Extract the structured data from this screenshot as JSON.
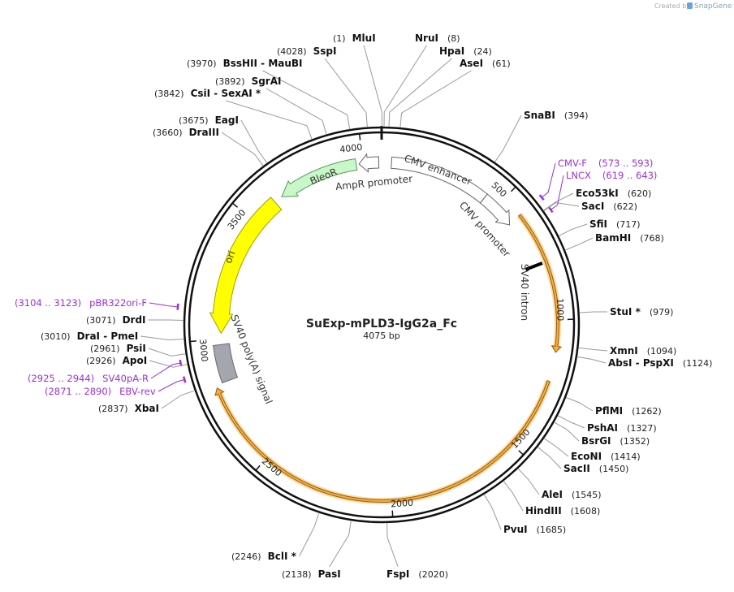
{
  "header": {
    "created_by": "Created by",
    "brand": "SnapGene"
  },
  "plasmid": {
    "name": "SuExp-mPLD3-IgG2a_Fc",
    "size": "4075 bp"
  },
  "ticks": [
    500,
    1000,
    1500,
    2000,
    2500,
    3000,
    3500,
    4000
  ],
  "features": [
    "CMV enhancer",
    "CMV promoter",
    "SV40 intron",
    "AmpR promoter",
    "BleoR",
    "ori",
    "SV40 poly(A) signal"
  ],
  "enzymes": [
    {
      "name": "MluI",
      "position": "(1)"
    },
    {
      "name": "NruI",
      "position": "(8)"
    },
    {
      "name": "HpaI",
      "position": "(24)"
    },
    {
      "name": "AseI",
      "position": "(61)"
    },
    {
      "name": "SnaBI",
      "position": "(394)"
    },
    {
      "name": "Eco53kI",
      "position": "(620)"
    },
    {
      "name": "SacI",
      "position": "(622)"
    },
    {
      "name": "SfiI",
      "position": "(717)"
    },
    {
      "name": "BamHI",
      "position": "(768)"
    },
    {
      "name": "StuI *",
      "position": "(979)"
    },
    {
      "name": "XmnI",
      "position": "(1094)"
    },
    {
      "name": "AbsI - PspXI",
      "position": "(1124)"
    },
    {
      "name": "PflMI",
      "position": "(1262)"
    },
    {
      "name": "PshAI",
      "position": "(1327)"
    },
    {
      "name": "BsrGI",
      "position": "(1352)"
    },
    {
      "name": "EcoNI",
      "position": "(1414)"
    },
    {
      "name": "SacII",
      "position": "(1450)"
    },
    {
      "name": "AleI",
      "position": "(1545)"
    },
    {
      "name": "HindIII",
      "position": "(1608)"
    },
    {
      "name": "PvuI",
      "position": "(1685)"
    },
    {
      "name": "FspI",
      "position": "(2020)"
    },
    {
      "name": "PasI",
      "position": "(2138)"
    },
    {
      "name": "BclI *",
      "position": "(2246)"
    },
    {
      "name": "XbaI",
      "position": "(2837)"
    },
    {
      "name": "ApoI",
      "position": "(2926)"
    },
    {
      "name": "PsiI",
      "position": "(2961)"
    },
    {
      "name": "DraI - PmeI",
      "position": "(3010)"
    },
    {
      "name": "DrdI",
      "position": "(3071)"
    },
    {
      "name": "DraIII",
      "position": "(3660)"
    },
    {
      "name": "EagI",
      "position": "(3675)"
    },
    {
      "name": "CsiI - SexAI *",
      "position": "(3842)"
    },
    {
      "name": "SgrAI",
      "position": "(3892)"
    },
    {
      "name": "BssHII - MauBI",
      "position": "(3970)"
    },
    {
      "name": "SspI",
      "position": "(4028)"
    }
  ],
  "primers": [
    {
      "name": "CMV-F",
      "range": "(573 .. 593)"
    },
    {
      "name": "LNCX",
      "range": "(619 .. 643)"
    },
    {
      "name": "pBR322ori-F",
      "range": "(3104 .. 3123)"
    },
    {
      "name": "SV40pA-R",
      "range": "(2925 .. 2944)"
    },
    {
      "name": "EBV-rev",
      "range": "(2871 .. 2890)"
    }
  ]
}
